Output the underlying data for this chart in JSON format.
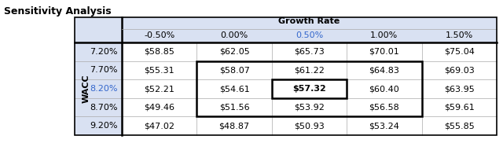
{
  "title": "Sensitivity Analysis",
  "col_header_label": "Growth Rate",
  "row_header_label": "WACC",
  "col_headers": [
    "-0.50%",
    "0.00%",
    "0.50%",
    "1.00%",
    "1.50%"
  ],
  "row_headers": [
    "7.20%",
    "7.70%",
    "8.20%",
    "8.70%",
    "9.20%"
  ],
  "values": [
    [
      "$58.85",
      "$62.05",
      "$65.73",
      "$70.01",
      "$75.04"
    ],
    [
      "$55.31",
      "$58.07",
      "$61.22",
      "$64.83",
      "$69.03"
    ],
    [
      "$52.21",
      "$54.61",
      "$57.32",
      "$60.40",
      "$63.95"
    ],
    [
      "$49.46",
      "$51.56",
      "$53.92",
      "$56.58",
      "$59.61"
    ],
    [
      "$47.02",
      "$48.87",
      "$50.93",
      "$53.24",
      "$55.85"
    ]
  ],
  "highlight_col": 2,
  "highlight_row": 2,
  "header_bg_color": "#D9E1F2",
  "border_color": "#000000",
  "grid_color": "#AAAAAA",
  "title_fontsize": 9,
  "cell_fontsize": 8,
  "header_fontsize": 8,
  "highlight_wacc_color": "#3366CC",
  "highlight_growth_color": "#3366CC",
  "wacc_fontsize": 8,
  "n_rows": 5,
  "n_cols": 5
}
